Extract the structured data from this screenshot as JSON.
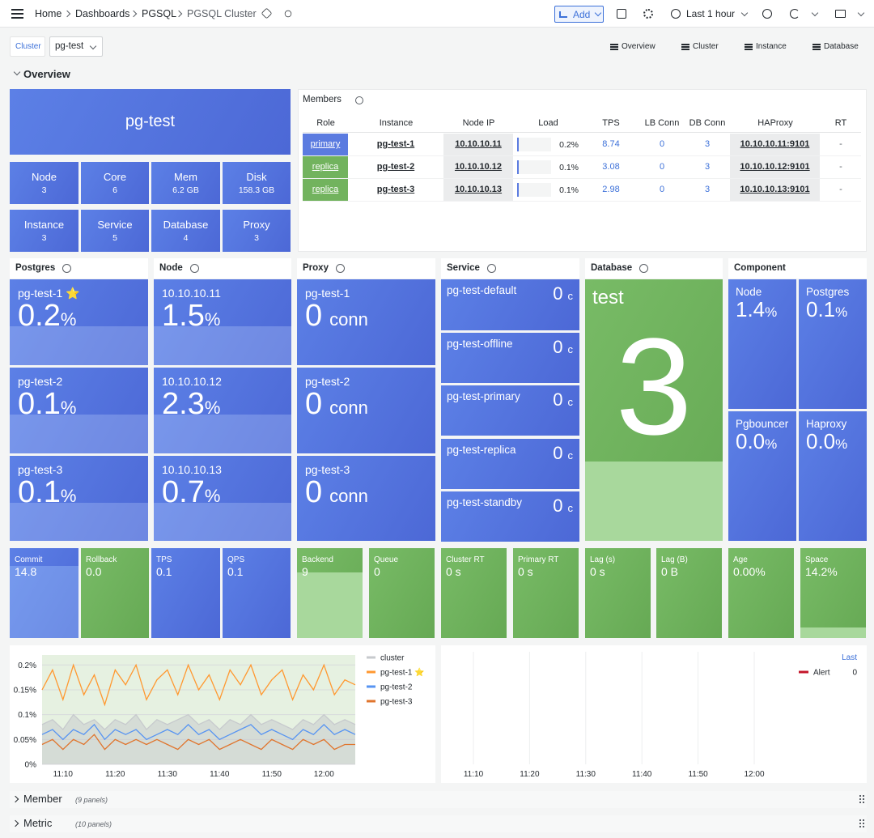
{
  "topbar": {
    "breadcrumbs": [
      "Home",
      "Dashboards",
      "PGSQL",
      "PGSQL Cluster"
    ],
    "add": "Add",
    "time_range": "Last 1 hour"
  },
  "variables": {
    "label": "Cluster",
    "value": "pg-test"
  },
  "links": [
    "Overview",
    "Cluster",
    "Instance",
    "Database"
  ],
  "overview_row": "Overview",
  "cluster_name": "pg-test",
  "summary_stats": [
    {
      "label": "Node",
      "value": "3"
    },
    {
      "label": "Core",
      "value": "6"
    },
    {
      "label": "Mem",
      "value": "6.2 GB"
    },
    {
      "label": "Disk",
      "value": "158.3 GB"
    },
    {
      "label": "Instance",
      "value": "3"
    },
    {
      "label": "Service",
      "value": "5"
    },
    {
      "label": "Database",
      "value": "4"
    },
    {
      "label": "Proxy",
      "value": "3"
    }
  ],
  "members": {
    "title": "Members",
    "columns": [
      "Role",
      "Instance",
      "Node IP",
      "Load",
      "TPS",
      "LB Conn",
      "DB Conn",
      "HAProxy",
      "RT"
    ],
    "rows": [
      [
        "primary",
        "pg-test-1",
        "10.10.10.11",
        "0.2%",
        "8.74",
        "0",
        "3",
        "10.10.10.11:9101",
        "-"
      ],
      [
        "replica",
        "pg-test-2",
        "10.10.10.12",
        "0.1%",
        "3.08",
        "0",
        "3",
        "10.10.10.12:9101",
        "-"
      ],
      [
        "replica",
        "pg-test-3",
        "10.10.10.13",
        "0.1%",
        "2.98",
        "0",
        "3",
        "10.10.10.13:9101",
        "-"
      ]
    ]
  },
  "postgres_panel": {
    "title": "Postgres",
    "items": [
      {
        "label": "pg-test-1 ⭐",
        "value": "0.2",
        "unit": "%"
      },
      {
        "label": "pg-test-2",
        "value": "0.1",
        "unit": "%"
      },
      {
        "label": "pg-test-3",
        "value": "0.1",
        "unit": "%"
      }
    ]
  },
  "node_panel": {
    "title": "Node",
    "items": [
      {
        "label": "10.10.10.11",
        "value": "1.5",
        "unit": "%"
      },
      {
        "label": "10.10.10.12",
        "value": "2.3",
        "unit": "%"
      },
      {
        "label": "10.10.10.13",
        "value": "0.7",
        "unit": "%"
      }
    ]
  },
  "proxy_panel": {
    "title": "Proxy",
    "items": [
      {
        "label": "pg-test-1",
        "value": "0",
        "unit": "conn"
      },
      {
        "label": "pg-test-2",
        "value": "0",
        "unit": "conn"
      },
      {
        "label": "pg-test-3",
        "value": "0",
        "unit": "conn"
      }
    ]
  },
  "service_panel": {
    "title": "Service",
    "items": [
      {
        "label": "pg-test-default",
        "value": "0",
        "unit": "c"
      },
      {
        "label": "pg-test-offline",
        "value": "0",
        "unit": "c"
      },
      {
        "label": "pg-test-primary",
        "value": "0",
        "unit": "c"
      },
      {
        "label": "pg-test-replica",
        "value": "0",
        "unit": "c"
      },
      {
        "label": "pg-test-standby",
        "value": "0",
        "unit": "c"
      }
    ]
  },
  "database_panel": {
    "title": "Database",
    "label": "test",
    "value": "3"
  },
  "component_panel": {
    "title": "Component",
    "items": [
      {
        "label": "Node",
        "value": "1.4",
        "unit": "%"
      },
      {
        "label": "Postgres",
        "value": "0.1",
        "unit": "%"
      },
      {
        "label": "Pgbouncer",
        "value": "0.0",
        "unit": "%"
      },
      {
        "label": "Haproxy",
        "value": "0.0",
        "unit": "%"
      }
    ]
  },
  "stats": [
    {
      "label": "Commit",
      "value": "14.8",
      "color": "blue"
    },
    {
      "label": "Rollback",
      "value": "0.0",
      "color": "green"
    },
    {
      "label": "TPS",
      "value": "0.1",
      "color": "blue"
    },
    {
      "label": "QPS",
      "value": "0.1",
      "color": "blue"
    },
    {
      "label": "Backend",
      "value": "9",
      "color": "green"
    },
    {
      "label": "Queue",
      "value": "0",
      "color": "green"
    },
    {
      "label": "Cluster RT",
      "value": "0 s",
      "color": "green"
    },
    {
      "label": "Primary RT",
      "value": "0 s",
      "color": "green"
    },
    {
      "label": "Lag (s)",
      "value": "0 s",
      "color": "green"
    },
    {
      "label": "Lag (B)",
      "value": "0 B",
      "color": "green"
    },
    {
      "label": "Age",
      "value": "0.00%",
      "color": "green"
    },
    {
      "label": "Space",
      "value": "14.2%",
      "color": "green"
    }
  ],
  "chart_data": {
    "type": "line",
    "x": [
      "11:06",
      "11:08",
      "11:10",
      "11:12",
      "11:14",
      "11:16",
      "11:18",
      "11:20",
      "11:22",
      "11:24",
      "11:26",
      "11:28",
      "11:30",
      "11:32",
      "11:34",
      "11:36",
      "11:38",
      "11:40",
      "11:42",
      "11:44",
      "11:46",
      "11:48",
      "11:50",
      "11:52",
      "11:54",
      "11:56",
      "11:58",
      "12:00",
      "12:02",
      "12:04",
      "12:06"
    ],
    "xticks": [
      "11:10",
      "11:20",
      "11:30",
      "11:40",
      "11:50",
      "12:00"
    ],
    "ylim": [
      0,
      0.22
    ],
    "yticks": [
      {
        "value": 0,
        "label": "0%"
      },
      {
        "value": 0.05,
        "label": "0.05%"
      },
      {
        "value": 0.1,
        "label": "0.1%"
      },
      {
        "value": 0.15,
        "label": "0.15%"
      },
      {
        "value": 0.2,
        "label": "0.2%"
      }
    ],
    "grid": true,
    "series": [
      {
        "name": "cluster",
        "color": "#c7cacd",
        "fill": true,
        "values": [
          0.08,
          0.09,
          0.07,
          0.1,
          0.08,
          0.09,
          0.07,
          0.09,
          0.08,
          0.1,
          0.07,
          0.09,
          0.08,
          0.09,
          0.1,
          0.08,
          0.09,
          0.07,
          0.09,
          0.08,
          0.1,
          0.08,
          0.09,
          0.08,
          0.07,
          0.09,
          0.08,
          0.1,
          0.08,
          0.09,
          0.08
        ]
      },
      {
        "name": "pg-test-1 ⭐",
        "color": "#ff9830",
        "values": [
          0.15,
          0.19,
          0.13,
          0.2,
          0.14,
          0.18,
          0.12,
          0.19,
          0.16,
          0.2,
          0.13,
          0.17,
          0.19,
          0.14,
          0.2,
          0.15,
          0.18,
          0.13,
          0.19,
          0.16,
          0.2,
          0.14,
          0.17,
          0.19,
          0.13,
          0.18,
          0.15,
          0.2,
          0.14,
          0.17,
          0.16
        ]
      },
      {
        "name": "pg-test-2",
        "color": "#5794f2",
        "values": [
          0.06,
          0.07,
          0.05,
          0.07,
          0.06,
          0.08,
          0.05,
          0.07,
          0.06,
          0.07,
          0.05,
          0.06,
          0.07,
          0.06,
          0.08,
          0.06,
          0.07,
          0.05,
          0.06,
          0.07,
          0.08,
          0.06,
          0.07,
          0.06,
          0.05,
          0.07,
          0.06,
          0.08,
          0.06,
          0.07,
          0.06
        ]
      },
      {
        "name": "pg-test-3",
        "color": "#e0752d",
        "values": [
          0.04,
          0.05,
          0.03,
          0.05,
          0.04,
          0.06,
          0.03,
          0.05,
          0.04,
          0.05,
          0.04,
          0.05,
          0.04,
          0.03,
          0.05,
          0.04,
          0.05,
          0.03,
          0.04,
          0.05,
          0.04,
          0.03,
          0.05,
          0.04,
          0.03,
          0.05,
          0.04,
          0.05,
          0.03,
          0.04,
          0.04
        ]
      }
    ]
  },
  "alert_panel": {
    "legend_header": "Last",
    "xticks": [
      "11:10",
      "11:20",
      "11:30",
      "11:40",
      "11:50",
      "12:00"
    ],
    "series": [
      {
        "name": "Alert",
        "color": "#c4162a",
        "last": "0"
      }
    ]
  },
  "collapsed_rows": [
    {
      "title": "Member",
      "note": "(9 panels)"
    },
    {
      "title": "Metric",
      "note": "(10 panels)"
    }
  ]
}
